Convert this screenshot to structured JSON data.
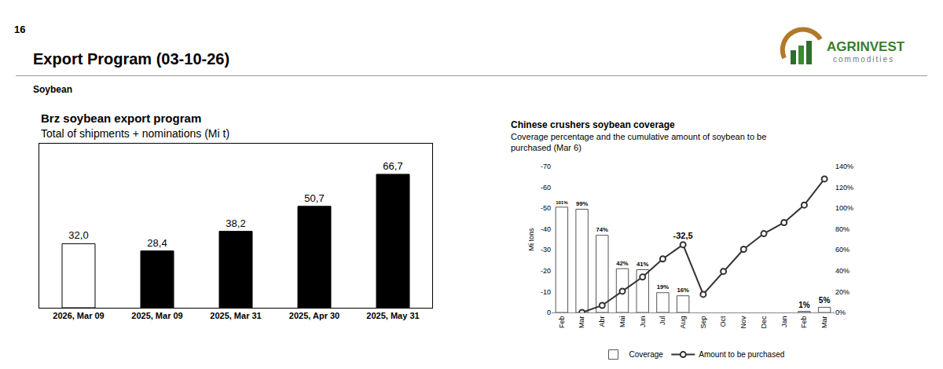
{
  "page": {
    "number": 16,
    "title": "Export Program (03-10-26)",
    "section": "Soybean",
    "logo": {
      "name": "AGRINVEST",
      "tagline": "commodities"
    }
  },
  "chart_data": [
    {
      "type": "bar",
      "title": "Brz soybean export program",
      "subtitle": "Total of shipments + nominations (Mi t)",
      "categories": [
        "2026, Mar 09",
        "2025, Mar 09",
        "2025, Mar 31",
        "2025, Apr 30",
        "2025, May 31"
      ],
      "values": [
        32.0,
        28.4,
        38.2,
        50.7,
        66.7
      ],
      "value_labels": [
        "32,0",
        "28,4",
        "38,2",
        "50,7",
        "66,7"
      ],
      "colors": [
        "#ffffff",
        "#000000",
        "#000000",
        "#000000",
        "#000000"
      ],
      "ylim": [
        0,
        82
      ],
      "grid": false,
      "data_labels": true,
      "tick_labels": "x"
    },
    {
      "type": "bar",
      "title": "Chinese crushers soybean coverage",
      "subtitle": "Coverage percentage and the cumulative amount of soybean to be purchased (Mar 6)",
      "categories": [
        "Feb",
        "Mar",
        "Abr",
        "Mai",
        "Jun",
        "Jul",
        "Aug",
        "Sep",
        "Oct",
        "Nov",
        "Dec",
        "Jan",
        "Feb",
        "Mar"
      ],
      "ylabel": "Mi tons",
      "ylim": [
        0,
        -70
      ],
      "yticks": [
        0,
        -10,
        -20,
        -30,
        -40,
        -50,
        -60,
        -70
      ],
      "y2lim": [
        0,
        140
      ],
      "y2ticks": [
        {
          "value": 0,
          "label": "0%"
        },
        {
          "value": 20,
          "label": "20%"
        },
        {
          "value": 40,
          "label": "40%"
        },
        {
          "value": 60,
          "label": "60%"
        },
        {
          "value": 80,
          "label": "80%"
        },
        {
          "value": 100,
          "label": "100%"
        },
        {
          "value": 120,
          "label": "120%"
        },
        {
          "value": 140,
          "label": "140%"
        }
      ],
      "grid": false,
      "legend": "bottom",
      "data_labels": true,
      "series": [
        {
          "name": "Coverage",
          "type": "bar",
          "axis": "y2",
          "color": "#ffffff",
          "values": [
            101,
            99,
            74,
            42,
            41,
            19,
            16,
            null,
            null,
            null,
            null,
            null,
            1,
            5
          ],
          "value_labels": [
            "101%",
            "99%",
            "74%",
            "42%",
            "41%",
            "19%",
            "16%",
            null,
            null,
            null,
            null,
            null,
            "1%",
            "5%"
          ]
        },
        {
          "name": "Amount to be purchased",
          "type": "line",
          "axis": "y",
          "color": "#333333",
          "marker": "circle",
          "line_style": "solid",
          "values": [
            null,
            0,
            -3.4,
            -10.2,
            -17,
            -25.7,
            -32.5,
            -8.7,
            -19.7,
            -30.3,
            -37.8,
            -43.1,
            -51.5,
            -64
          ],
          "value_labels": [
            null,
            null,
            null,
            null,
            null,
            null,
            "-32,5",
            null,
            null,
            null,
            null,
            null,
            null,
            null
          ]
        }
      ]
    }
  ]
}
